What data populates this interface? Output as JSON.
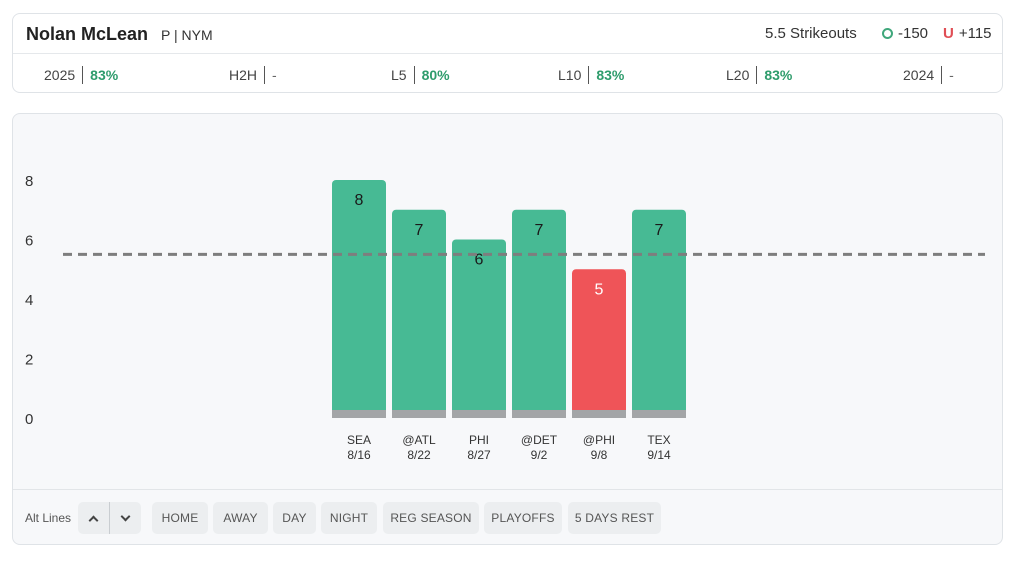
{
  "header": {
    "player_name": "Nolan McLean",
    "player_meta": "P | NYM",
    "prop_line": "5.5 Strikeouts",
    "over_odds": "-150",
    "under_odds": "+115",
    "under_symbol": "U",
    "over_icon": "over-circle-icon"
  },
  "stats": [
    {
      "label": "2025",
      "value": "83%"
    },
    {
      "label": "H2H",
      "value": "-"
    },
    {
      "label": "L5",
      "value": "80%"
    },
    {
      "label": "L10",
      "value": "83%"
    },
    {
      "label": "L20",
      "value": "83%"
    },
    {
      "label": "2024",
      "value": "-"
    }
  ],
  "chart_data": {
    "type": "bar",
    "categories": [
      "SEA",
      "@ATL",
      "PHI",
      "@DET",
      "@PHI",
      "TEX"
    ],
    "dates": [
      "8/16",
      "8/22",
      "8/27",
      "9/2",
      "9/8",
      "9/14"
    ],
    "values": [
      8,
      7,
      6,
      7,
      5,
      7
    ],
    "line": 5.5,
    "yticks": [
      0,
      2,
      4,
      6,
      8
    ],
    "ylim": [
      0,
      8
    ],
    "colors": {
      "over": "#47ba94",
      "under": "#ef5458",
      "base": "#a3a5a7",
      "line": "#7e7e7e"
    }
  },
  "filters": {
    "alt_lines_label": "Alt Lines",
    "buttons": [
      "HOME",
      "AWAY",
      "DAY",
      "NIGHT",
      "REG SEASON",
      "PLAYOFFS",
      "5 DAYS REST"
    ]
  }
}
